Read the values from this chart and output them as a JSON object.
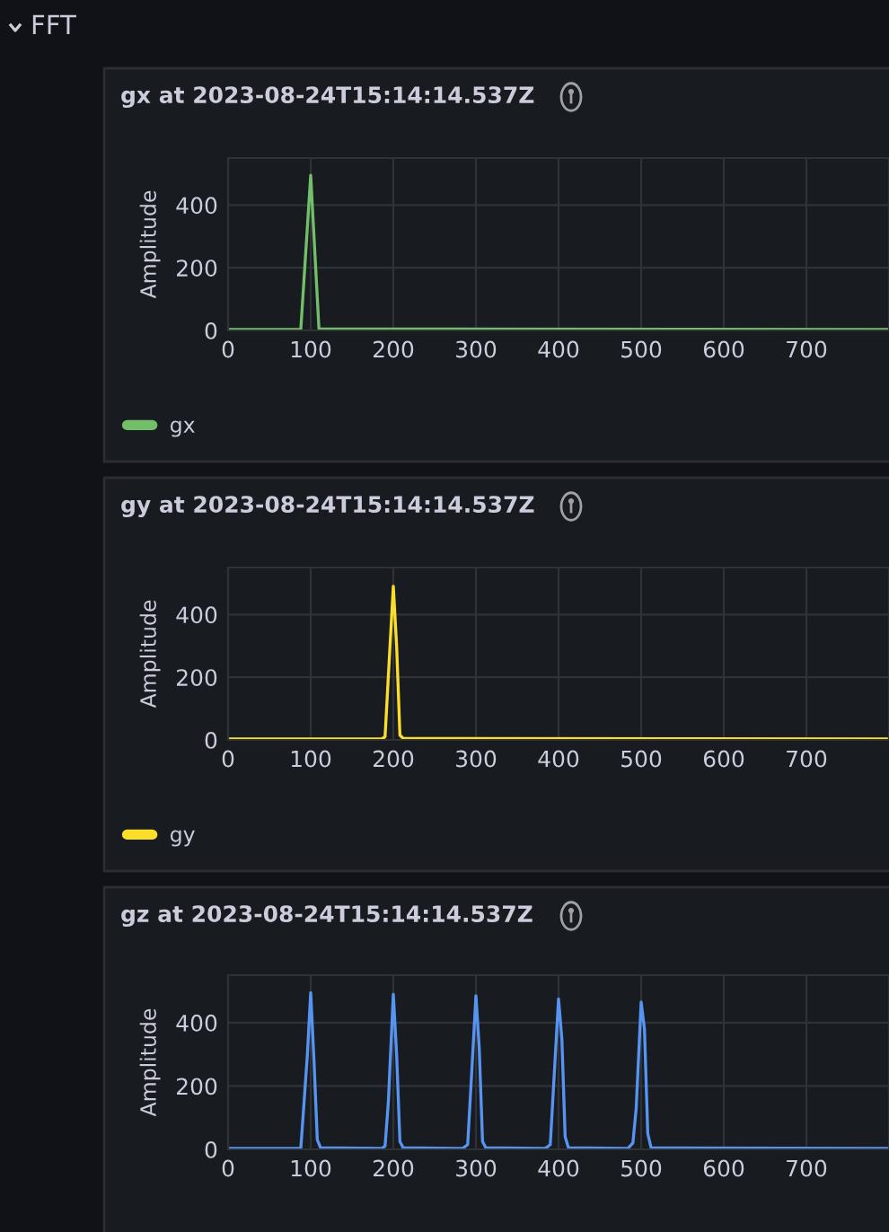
{
  "chart_data": [
    {
      "type": "line",
      "title": "gx at 2023-08-24T15:14:14.537Z",
      "ylabel": "Amplitude",
      "annotations": [
        "FFT"
      ],
      "series": [
        {
          "name": "gx",
          "color": "#73bf69",
          "x": [
            0,
            88,
            100,
            110,
            800
          ],
          "values": [
            3,
            3,
            495,
            5,
            3
          ]
        }
      ],
      "xlim": [
        0,
        800
      ],
      "xticks": [
        0,
        100,
        200,
        300,
        400,
        500,
        600,
        700
      ],
      "ylim": [
        0,
        550
      ],
      "yticks": [
        0,
        200,
        400
      ],
      "grid": true,
      "legend": "bottom left",
      "marker": "none",
      "line_style": "solid"
    },
    {
      "type": "line",
      "title": "gy at 2023-08-24T15:14:14.537Z",
      "ylabel": "Amplitude",
      "series": [
        {
          "name": "gy",
          "color": "#fade2a",
          "x": [
            0,
            186,
            190,
            196,
            200,
            204,
            208,
            212,
            800
          ],
          "values": [
            3,
            3,
            10,
            300,
            490,
            300,
            15,
            5,
            3
          ]
        }
      ],
      "xlim": [
        0,
        800
      ],
      "xticks": [
        0,
        100,
        200,
        300,
        400,
        500,
        600,
        700
      ],
      "ylim": [
        0,
        550
      ],
      "yticks": [
        0,
        200,
        400
      ],
      "grid": true,
      "legend": "bottom left",
      "marker": "none",
      "line_style": "solid"
    },
    {
      "type": "line",
      "title": "gz at 2023-08-24T15:14:14.537Z",
      "ylabel": "Amplitude",
      "series": [
        {
          "color": "#5794f2",
          "x": [
            0,
            88,
            92,
            96,
            100,
            104,
            108,
            112,
            186,
            190,
            194,
            200,
            204,
            208,
            212,
            284,
            290,
            294,
            300,
            304,
            308,
            312,
            384,
            390,
            394,
            400,
            404,
            408,
            412,
            484,
            490,
            494,
            500,
            504,
            508,
            512,
            800
          ],
          "values": [
            3,
            3,
            150,
            300,
            495,
            280,
            30,
            5,
            3,
            10,
            150,
            490,
            300,
            25,
            5,
            3,
            15,
            200,
            485,
            320,
            25,
            5,
            3,
            15,
            200,
            475,
            350,
            40,
            5,
            3,
            20,
            130,
            465,
            380,
            50,
            5,
            3
          ]
        }
      ],
      "xlim": [
        0,
        800
      ],
      "xticks": [
        0,
        100,
        200,
        300,
        400,
        500,
        600,
        700
      ],
      "ylim": [
        0,
        550
      ],
      "yticks": [
        0,
        200,
        400
      ],
      "grid": true,
      "legend": false,
      "marker": "none",
      "line_style": "solid"
    }
  ]
}
